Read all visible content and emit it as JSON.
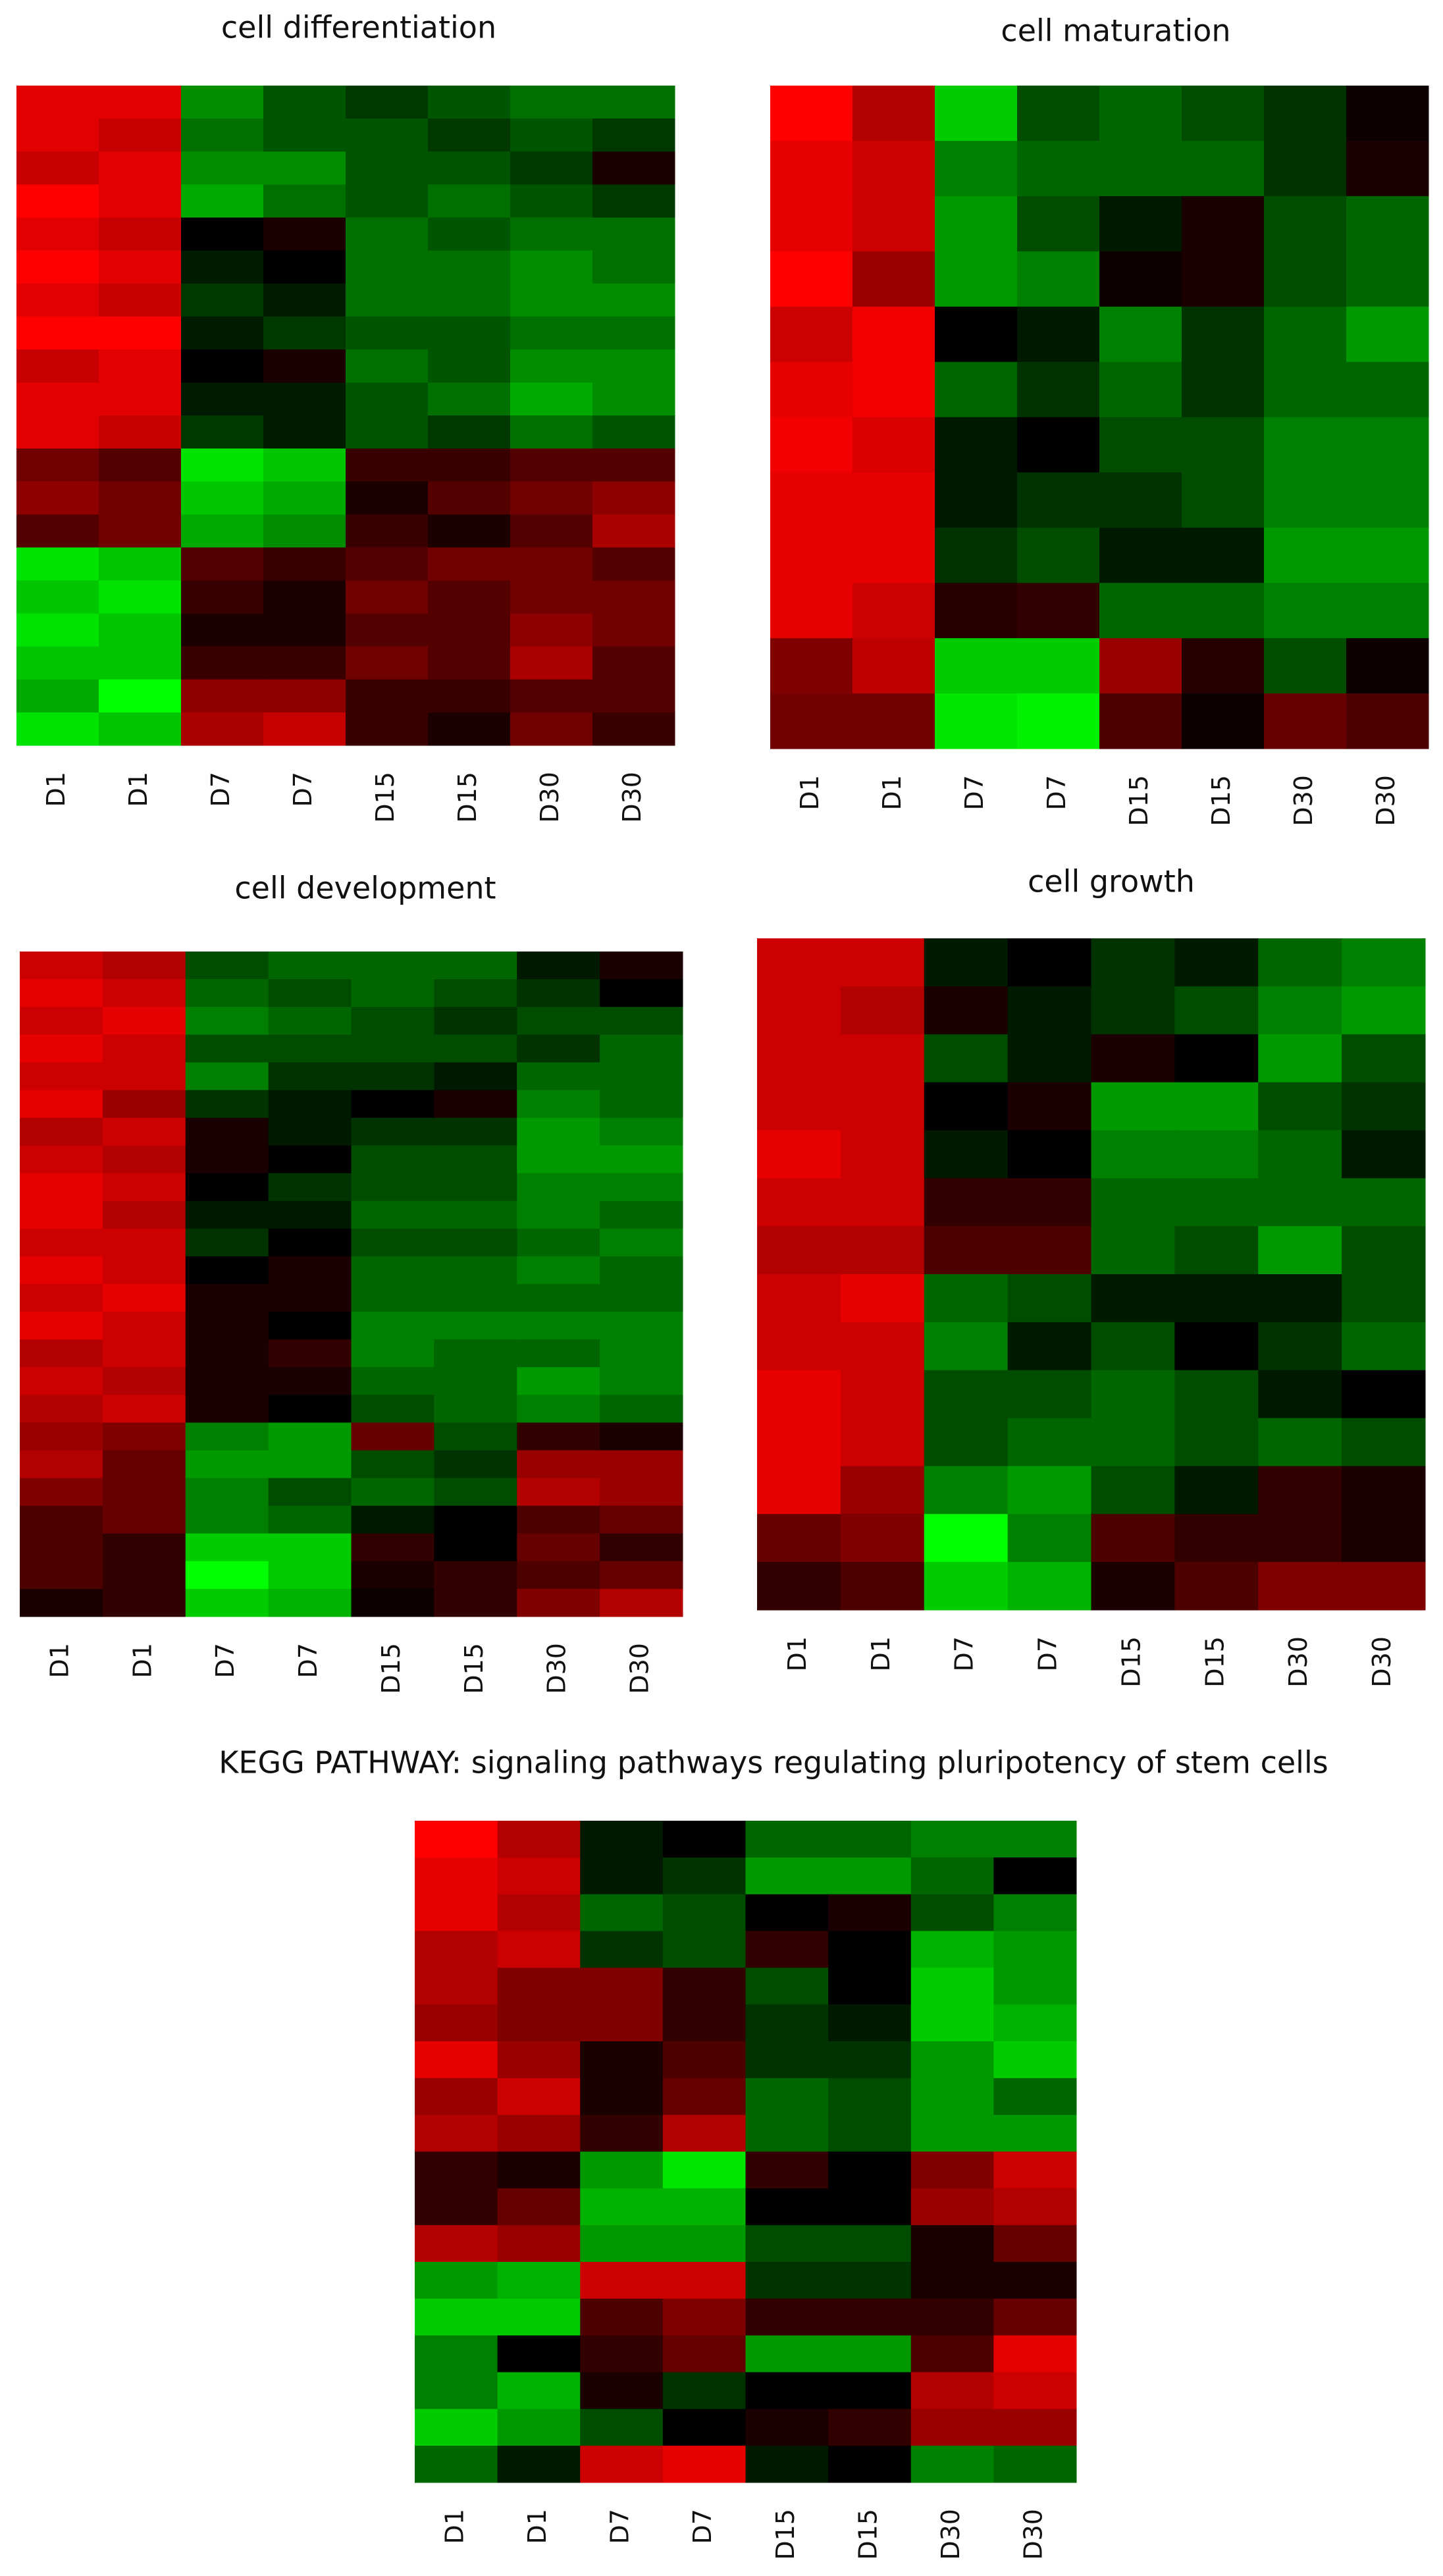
{
  "chart_data": [
    {
      "type": "heatmap",
      "title": "cell differentiation",
      "x": [
        "D1",
        "D1",
        "D7",
        "D7",
        "D15",
        "D15",
        "D30",
        "D30"
      ],
      "colors": {
        "low": "#00ff00",
        "mid": "#000000",
        "high": "#ff0000"
      },
      "values": [
        [
          0.8,
          0.8,
          -0.5,
          -0.3,
          -0.2,
          -0.3,
          -0.4,
          -0.4
        ],
        [
          0.8,
          0.7,
          -0.4,
          -0.3,
          -0.3,
          -0.2,
          -0.3,
          -0.2
        ],
        [
          0.7,
          0.8,
          -0.5,
          -0.5,
          -0.3,
          -0.3,
          -0.2,
          0.1
        ],
        [
          0.9,
          0.8,
          -0.6,
          -0.4,
          -0.3,
          -0.4,
          -0.3,
          -0.2
        ],
        [
          0.8,
          0.7,
          0,
          0.1,
          -0.4,
          -0.3,
          -0.4,
          -0.4
        ],
        [
          0.9,
          0.8,
          -0.1,
          0,
          -0.4,
          -0.4,
          -0.5,
          -0.4
        ],
        [
          0.8,
          0.7,
          -0.2,
          -0.1,
          -0.4,
          -0.4,
          -0.5,
          -0.5
        ],
        [
          0.9,
          0.9,
          -0.1,
          -0.2,
          -0.3,
          -0.3,
          -0.4,
          -0.4
        ],
        [
          0.7,
          0.8,
          0,
          0.1,
          -0.4,
          -0.3,
          -0.5,
          -0.5
        ],
        [
          0.8,
          0.8,
          -0.1,
          -0.1,
          -0.3,
          -0.4,
          -0.6,
          -0.5
        ],
        [
          0.8,
          0.7,
          -0.2,
          -0.1,
          -0.3,
          -0.2,
          -0.4,
          -0.3
        ],
        [
          0.4,
          0.3,
          -0.8,
          -0.7,
          0.2,
          0.2,
          0.3,
          0.3
        ],
        [
          0.5,
          0.4,
          -0.7,
          -0.6,
          0.1,
          0.3,
          0.4,
          0.5
        ],
        [
          0.3,
          0.4,
          -0.6,
          -0.5,
          0.2,
          0.1,
          0.3,
          0.6
        ],
        [
          -0.8,
          -0.7,
          0.3,
          0.2,
          0.3,
          0.4,
          0.4,
          0.3
        ],
        [
          -0.7,
          -0.8,
          0.2,
          0.1,
          0.4,
          0.3,
          0.4,
          0.4
        ],
        [
          -0.8,
          -0.7,
          0.1,
          0.1,
          0.3,
          0.3,
          0.5,
          0.4
        ],
        [
          -0.7,
          -0.7,
          0.2,
          0.2,
          0.4,
          0.3,
          0.6,
          0.3
        ],
        [
          -0.6,
          -0.9,
          0.5,
          0.5,
          0.2,
          0.2,
          0.3,
          0.3
        ],
        [
          -0.8,
          -0.7,
          0.6,
          0.7,
          0.2,
          0.1,
          0.4,
          0.2
        ]
      ]
    },
    {
      "type": "heatmap",
      "title": "cell maturation",
      "x": [
        "D1",
        "D1",
        "D7",
        "D7",
        "D15",
        "D15",
        "D30",
        "D30"
      ],
      "colors": {
        "low": "#00ff00",
        "mid": "#000000",
        "high": "#ff0000"
      },
      "values": [
        [
          1.0,
          0.7,
          -0.8,
          -0.3,
          -0.4,
          -0.3,
          -0.2,
          0.05
        ],
        [
          0.9,
          0.8,
          -0.5,
          -0.4,
          -0.4,
          -0.4,
          -0.2,
          0.1
        ],
        [
          0.9,
          0.8,
          -0.6,
          -0.3,
          -0.1,
          0.1,
          -0.3,
          -0.4
        ],
        [
          1.0,
          0.6,
          -0.6,
          -0.5,
          0.05,
          0.1,
          -0.3,
          -0.4
        ],
        [
          0.8,
          0.95,
          0,
          -0.1,
          -0.5,
          -0.2,
          -0.4,
          -0.6
        ],
        [
          0.9,
          0.95,
          -0.4,
          -0.2,
          -0.4,
          -0.2,
          -0.4,
          -0.4
        ],
        [
          0.95,
          0.85,
          -0.1,
          0,
          -0.3,
          -0.3,
          -0.5,
          -0.5
        ],
        [
          0.9,
          0.9,
          -0.1,
          -0.2,
          -0.2,
          -0.3,
          -0.5,
          -0.5
        ],
        [
          0.9,
          0.9,
          -0.2,
          -0.3,
          -0.1,
          -0.1,
          -0.6,
          -0.6
        ],
        [
          0.9,
          0.8,
          0.15,
          0.2,
          -0.4,
          -0.4,
          -0.5,
          -0.5
        ],
        [
          0.5,
          0.75,
          -0.8,
          -0.8,
          0.6,
          0.15,
          -0.3,
          0.05
        ],
        [
          0.45,
          0.45,
          -0.9,
          -0.95,
          0.3,
          0.05,
          0.4,
          0.3
        ]
      ]
    },
    {
      "type": "heatmap",
      "title": "cell development",
      "x": [
        "D1",
        "D1",
        "D7",
        "D7",
        "D15",
        "D15",
        "D30",
        "D30"
      ],
      "colors": {
        "low": "#00ff00",
        "mid": "#000000",
        "high": "#ff0000"
      },
      "values": [
        [
          0.8,
          0.7,
          -0.3,
          -0.4,
          -0.4,
          -0.4,
          -0.1,
          0.1
        ],
        [
          0.9,
          0.8,
          -0.4,
          -0.3,
          -0.4,
          -0.3,
          -0.2,
          0
        ],
        [
          0.8,
          0.9,
          -0.5,
          -0.4,
          -0.3,
          -0.2,
          -0.3,
          -0.3
        ],
        [
          0.9,
          0.8,
          -0.3,
          -0.3,
          -0.3,
          -0.3,
          -0.2,
          -0.4
        ],
        [
          0.8,
          0.8,
          -0.5,
          -0.2,
          -0.2,
          -0.1,
          -0.4,
          -0.4
        ],
        [
          0.9,
          0.6,
          -0.2,
          -0.1,
          0,
          0.1,
          -0.5,
          -0.4
        ],
        [
          0.7,
          0.8,
          0.1,
          -0.1,
          -0.2,
          -0.2,
          -0.6,
          -0.5
        ],
        [
          0.8,
          0.7,
          0.1,
          0,
          -0.3,
          -0.3,
          -0.6,
          -0.6
        ],
        [
          0.9,
          0.8,
          0,
          -0.2,
          -0.3,
          -0.3,
          -0.5,
          -0.5
        ],
        [
          0.9,
          0.7,
          -0.1,
          -0.1,
          -0.4,
          -0.4,
          -0.5,
          -0.4
        ],
        [
          0.8,
          0.8,
          -0.2,
          0,
          -0.3,
          -0.3,
          -0.4,
          -0.5
        ],
        [
          0.9,
          0.8,
          0,
          0.1,
          -0.4,
          -0.4,
          -0.5,
          -0.4
        ],
        [
          0.8,
          0.9,
          0.1,
          0.1,
          -0.4,
          -0.4,
          -0.4,
          -0.4
        ],
        [
          0.9,
          0.8,
          0.1,
          0,
          -0.5,
          -0.5,
          -0.5,
          -0.5
        ],
        [
          0.7,
          0.8,
          0.1,
          0.2,
          -0.5,
          -0.4,
          -0.4,
          -0.5
        ],
        [
          0.8,
          0.7,
          0.1,
          0.1,
          -0.4,
          -0.4,
          -0.6,
          -0.5
        ],
        [
          0.7,
          0.8,
          0.1,
          0,
          -0.3,
          -0.4,
          -0.5,
          -0.4
        ],
        [
          0.6,
          0.5,
          -0.5,
          -0.6,
          0.4,
          -0.3,
          0.2,
          0.1
        ],
        [
          0.7,
          0.4,
          -0.6,
          -0.6,
          -0.3,
          -0.2,
          0.6,
          0.6
        ],
        [
          0.5,
          0.4,
          -0.5,
          -0.3,
          -0.4,
          -0.3,
          0.7,
          0.6
        ],
        [
          0.3,
          0.4,
          -0.5,
          -0.4,
          -0.1,
          0,
          0.3,
          0.4
        ],
        [
          0.3,
          0.2,
          -0.8,
          -0.8,
          0.2,
          0,
          0.4,
          0.2
        ],
        [
          0.3,
          0.2,
          -1.0,
          -0.8,
          0.1,
          0.2,
          0.3,
          0.4
        ],
        [
          0.1,
          0.2,
          -0.8,
          -0.7,
          0.05,
          0.2,
          0.5,
          0.7
        ]
      ]
    },
    {
      "type": "heatmap",
      "title": "cell growth",
      "x": [
        "D1",
        "D1",
        "D7",
        "D7",
        "D15",
        "D15",
        "D30",
        "D30"
      ],
      "colors": {
        "low": "#00ff00",
        "mid": "#000000",
        "high": "#ff0000"
      },
      "values": [
        [
          0.8,
          0.8,
          -0.1,
          0,
          -0.2,
          -0.1,
          -0.4,
          -0.5
        ],
        [
          0.8,
          0.7,
          0.1,
          -0.1,
          -0.2,
          -0.3,
          -0.5,
          -0.6
        ],
        [
          0.8,
          0.8,
          -0.3,
          -0.1,
          0.1,
          0,
          -0.6,
          -0.3
        ],
        [
          0.8,
          0.8,
          0,
          0.1,
          -0.6,
          -0.6,
          -0.3,
          -0.2
        ],
        [
          0.9,
          0.8,
          -0.1,
          0,
          -0.5,
          -0.5,
          -0.4,
          -0.1
        ],
        [
          0.8,
          0.8,
          0.2,
          0.2,
          -0.4,
          -0.4,
          -0.4,
          -0.4
        ],
        [
          0.7,
          0.7,
          0.3,
          0.3,
          -0.4,
          -0.3,
          -0.6,
          -0.3
        ],
        [
          0.8,
          0.9,
          -0.4,
          -0.3,
          -0.1,
          -0.1,
          -0.1,
          -0.3
        ],
        [
          0.8,
          0.8,
          -0.5,
          -0.1,
          -0.3,
          0,
          -0.2,
          -0.4
        ],
        [
          0.9,
          0.8,
          -0.3,
          -0.3,
          -0.4,
          -0.3,
          -0.1,
          0
        ],
        [
          0.9,
          0.8,
          -0.3,
          -0.4,
          -0.4,
          -0.3,
          -0.4,
          -0.3
        ],
        [
          0.9,
          0.6,
          -0.5,
          -0.6,
          -0.3,
          -0.1,
          0.2,
          0.1
        ],
        [
          0.4,
          0.5,
          -1.0,
          -0.5,
          0.3,
          0.2,
          0.2,
          0.1
        ],
        [
          0.2,
          0.3,
          -0.8,
          -0.7,
          0.1,
          0.3,
          0.5,
          0.5
        ]
      ]
    },
    {
      "type": "heatmap",
      "title": "KEGG PATHWAY: signaling pathways regulating pluripotency of stem cells",
      "x": [
        "D1",
        "D1",
        "D7",
        "D7",
        "D15",
        "D15",
        "D30",
        "D30"
      ],
      "colors": {
        "low": "#00ff00",
        "mid": "#000000",
        "high": "#ff0000"
      },
      "values": [
        [
          1.0,
          0.7,
          -0.1,
          0,
          -0.4,
          -0.4,
          -0.5,
          -0.5
        ],
        [
          0.9,
          0.8,
          -0.1,
          -0.2,
          -0.6,
          -0.6,
          -0.4,
          0
        ],
        [
          0.9,
          0.7,
          -0.4,
          -0.3,
          0,
          0.1,
          -0.3,
          -0.5
        ],
        [
          0.7,
          0.8,
          -0.2,
          -0.3,
          0.2,
          0,
          -0.7,
          -0.6
        ],
        [
          0.7,
          0.5,
          0.5,
          0.2,
          -0.3,
          0,
          -0.8,
          -0.6
        ],
        [
          0.6,
          0.5,
          0.5,
          0.2,
          -0.2,
          -0.1,
          -0.8,
          -0.7
        ],
        [
          0.9,
          0.6,
          0.1,
          0.3,
          -0.2,
          -0.2,
          -0.6,
          -0.8
        ],
        [
          0.6,
          0.8,
          0.1,
          0.4,
          -0.4,
          -0.3,
          -0.6,
          -0.4
        ],
        [
          0.7,
          0.6,
          0.2,
          0.7,
          -0.4,
          -0.3,
          -0.6,
          -0.6
        ],
        [
          0.2,
          0.1,
          -0.6,
          -0.9,
          0.2,
          0,
          0.5,
          0.8
        ],
        [
          0.2,
          0.4,
          -0.7,
          -0.7,
          0,
          0,
          0.6,
          0.7
        ],
        [
          0.7,
          0.6,
          -0.6,
          -0.6,
          -0.3,
          -0.3,
          0.1,
          0.4
        ],
        [
          -0.6,
          -0.7,
          0.8,
          0.8,
          -0.2,
          -0.2,
          0.1,
          0.1
        ],
        [
          -0.8,
          -0.8,
          0.3,
          0.5,
          0.2,
          0.2,
          0.2,
          0.4
        ],
        [
          -0.5,
          0,
          0.2,
          0.4,
          -0.6,
          -0.6,
          0.3,
          0.9
        ],
        [
          -0.5,
          -0.7,
          0.1,
          -0.2,
          0,
          0,
          0.7,
          0.8
        ],
        [
          -0.8,
          -0.6,
          -0.3,
          0,
          0.1,
          0.2,
          0.6,
          0.6
        ],
        [
          -0.4,
          -0.1,
          0.8,
          0.9,
          -0.1,
          0,
          -0.5,
          -0.4
        ]
      ]
    }
  ]
}
